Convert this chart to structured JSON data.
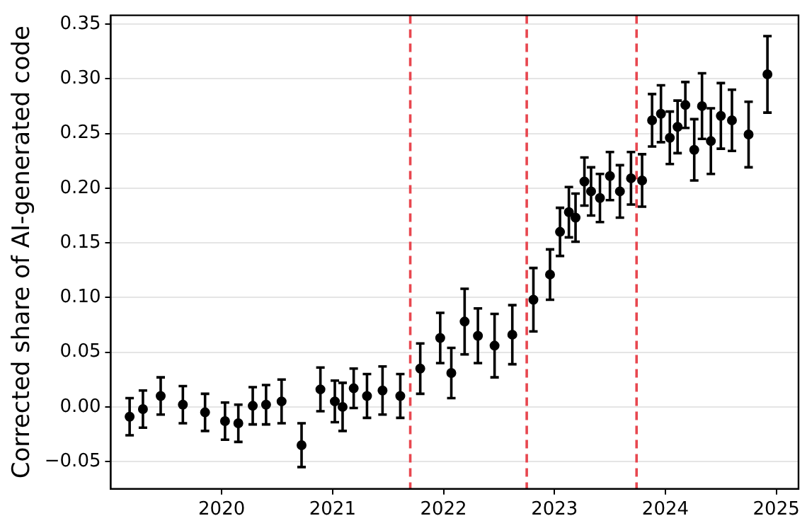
{
  "chart_data": {
    "type": "scatter",
    "ylabel": "Corrected share of AI-generated code",
    "xlim": [
      2019.0,
      2025.2
    ],
    "xticks": [
      2020,
      2021,
      2022,
      2023,
      2024,
      2025
    ],
    "ylim": [
      -0.075,
      0.358
    ],
    "yticks": [
      {
        "value": -0.05,
        "label": "−0.05"
      },
      {
        "value": 0,
        "label": "0.00"
      },
      {
        "value": 0.05,
        "label": "0.05"
      },
      {
        "value": 0.1,
        "label": "0.10"
      },
      {
        "value": 0.15,
        "label": "0.15"
      },
      {
        "value": 0.2,
        "label": "0.20"
      },
      {
        "value": 0.25,
        "label": "0.25"
      },
      {
        "value": 0.3,
        "label": "0.30"
      },
      {
        "value": 0.35,
        "label": "0.35"
      }
    ],
    "grid": "y",
    "marker": "circle",
    "series": [
      {
        "color": "#000000",
        "x": [
          2019.17,
          2019.29,
          2019.45,
          2019.65,
          2019.85,
          2020.03,
          2020.15,
          2020.28,
          2020.4,
          2020.54,
          2020.72,
          2020.89,
          2021.02,
          2021.09,
          2021.19,
          2021.31,
          2021.45,
          2021.61,
          2021.79,
          2021.97,
          2022.07,
          2022.19,
          2022.31,
          2022.46,
          2022.62,
          2022.81,
          2022.96,
          2023.05,
          2023.13,
          2023.19,
          2023.27,
          2023.33,
          2023.41,
          2023.5,
          2023.59,
          2023.69,
          2023.79,
          2023.88,
          2023.96,
          2024.04,
          2024.11,
          2024.18,
          2024.26,
          2024.33,
          2024.41,
          2024.5,
          2024.6,
          2024.75,
          2024.92
        ],
        "values": [
          -0.009,
          -0.002,
          0.01,
          0.002,
          -0.005,
          -0.013,
          -0.015,
          0.001,
          0.002,
          0.005,
          -0.035,
          0.016,
          0.005,
          0.0,
          0.017,
          0.01,
          0.015,
          0.01,
          0.035,
          0.063,
          0.031,
          0.078,
          0.065,
          0.056,
          0.066,
          0.098,
          0.121,
          0.16,
          0.178,
          0.173,
          0.206,
          0.197,
          0.191,
          0.211,
          0.197,
          0.209,
          0.207,
          0.262,
          0.268,
          0.246,
          0.256,
          0.276,
          0.235,
          0.275,
          0.243,
          0.266,
          0.262,
          0.249,
          0.304
        ],
        "errors": [
          0.017,
          0.017,
          0.017,
          0.017,
          0.017,
          0.017,
          0.017,
          0.017,
          0.018,
          0.02,
          0.02,
          0.02,
          0.019,
          0.022,
          0.018,
          0.02,
          0.022,
          0.02,
          0.023,
          0.023,
          0.023,
          0.03,
          0.025,
          0.029,
          0.027,
          0.029,
          0.023,
          0.022,
          0.023,
          0.022,
          0.022,
          0.022,
          0.022,
          0.022,
          0.024,
          0.024,
          0.024,
          0.024,
          0.026,
          0.024,
          0.024,
          0.021,
          0.028,
          0.03,
          0.03,
          0.03,
          0.028,
          0.03,
          0.035
        ]
      }
    ],
    "ref_lines": [
      {
        "axis": "x",
        "value": 2021.7,
        "color": "#e8474f",
        "line_style": "dashed"
      },
      {
        "axis": "x",
        "value": 2022.75,
        "color": "#e8474f",
        "line_style": "dashed"
      },
      {
        "axis": "x",
        "value": 2023.74,
        "color": "#e8474f",
        "line_style": "dashed"
      }
    ]
  }
}
